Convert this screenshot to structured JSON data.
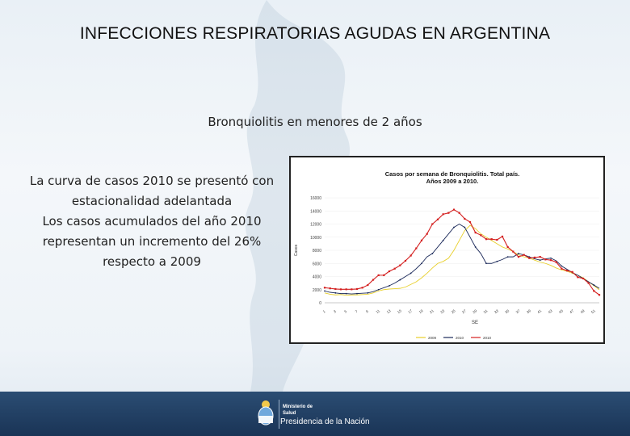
{
  "slide": {
    "title": "INFECCIONES RESPIRATORIAS AGUDAS EN ARGENTINA",
    "subtitle": "Bronquiolitis en menores de 2 años",
    "paragraphs": [
      "La curva de casos 2010 se  presentó con estacionalidad adelantada",
      "Los casos acumulados  del año 2010 representan un incremento del 26% respecto a 2009"
    ]
  },
  "footer": {
    "ministry_line1": "Ministerio de",
    "ministry_line2": "Salud",
    "presidency": "Presidencia de la Nación"
  },
  "colors": {
    "series_2009": "#e8cf2a",
    "series_2010_dark": "#1c2a5a",
    "series_2010_red": "#d42020",
    "footer_bg": "#1f3c60"
  },
  "chart_data": {
    "type": "line",
    "title": "Casos por semana de Bronquiolitis. Total país.",
    "subtitle": "Años 2009 a 2010.",
    "xlabel": "SE",
    "ylabel": "Casos",
    "ylim": [
      0,
      16000
    ],
    "yticks": [
      "0",
      "2000",
      "4000",
      "6000",
      "8000",
      "10000",
      "12000",
      "14000",
      "16000"
    ],
    "x": [
      1,
      2,
      3,
      4,
      5,
      6,
      7,
      8,
      9,
      10,
      11,
      12,
      13,
      14,
      15,
      16,
      17,
      18,
      19,
      20,
      21,
      22,
      23,
      24,
      25,
      26,
      27,
      28,
      29,
      30,
      31,
      32,
      33,
      34,
      35,
      36,
      37,
      38,
      39,
      40,
      41,
      42,
      43,
      44,
      45,
      46,
      47,
      48,
      49,
      50,
      51,
      52
    ],
    "xtick_labels": [
      "1",
      "3",
      "5",
      "7",
      "9",
      "11",
      "13",
      "15",
      "17",
      "19",
      "21",
      "23",
      "25",
      "27",
      "29",
      "31",
      "33",
      "35",
      "37",
      "39",
      "41",
      "43",
      "45",
      "47",
      "49",
      "51"
    ],
    "series": [
      {
        "name": "2009",
        "color": "#e8cf2a",
        "values": [
          1500,
          1300,
          1200,
          1250,
          1150,
          1200,
          1200,
          1250,
          1300,
          1500,
          1800,
          2000,
          2100,
          2150,
          2200,
          2400,
          2800,
          3200,
          3800,
          4500,
          5300,
          6000,
          6300,
          6800,
          8000,
          9500,
          11000,
          11800,
          11300,
          10500,
          10000,
          9500,
          9000,
          8500,
          8200,
          7800,
          7300,
          7000,
          6800,
          6500,
          6200,
          6000,
          5700,
          5300,
          5000,
          4800,
          4500,
          4200,
          3800,
          3200,
          2600,
          2000
        ]
      },
      {
        "name": "2010",
        "color": "#1c2a5a",
        "values": [
          1800,
          1600,
          1500,
          1400,
          1400,
          1350,
          1400,
          1450,
          1500,
          1700,
          2000,
          2300,
          2600,
          3000,
          3500,
          4000,
          4500,
          5200,
          6000,
          7000,
          7500,
          8500,
          9500,
          10500,
          11500,
          12000,
          11500,
          10000,
          8500,
          7500,
          6000,
          6000,
          6300,
          6600,
          7000,
          7000,
          7500,
          7300,
          7000,
          6700,
          6500,
          6700,
          6800,
          6400,
          5600,
          5100,
          4600,
          4200,
          3700,
          3200,
          2700,
          2200
        ]
      },
      {
        "name": "2010",
        "color": "#d42020",
        "values": [
          2300,
          2200,
          2100,
          2050,
          2050,
          2050,
          2100,
          2300,
          2700,
          3500,
          4200,
          4200,
          4800,
          5200,
          5700,
          6400,
          7200,
          8300,
          9500,
          10500,
          12000,
          12700,
          13500,
          13700,
          14200,
          13700,
          12800,
          12300,
          10700,
          10300,
          9700,
          9700,
          9600,
          10100,
          8500,
          7800,
          7000,
          7300,
          6800,
          6900,
          7000,
          6600,
          6500,
          6200,
          5200,
          4900,
          4700,
          3900,
          3700,
          3000,
          1800,
          1200
        ]
      }
    ],
    "legend": [
      "2009",
      "2010",
      "2010"
    ],
    "legend_position": "bottom"
  }
}
